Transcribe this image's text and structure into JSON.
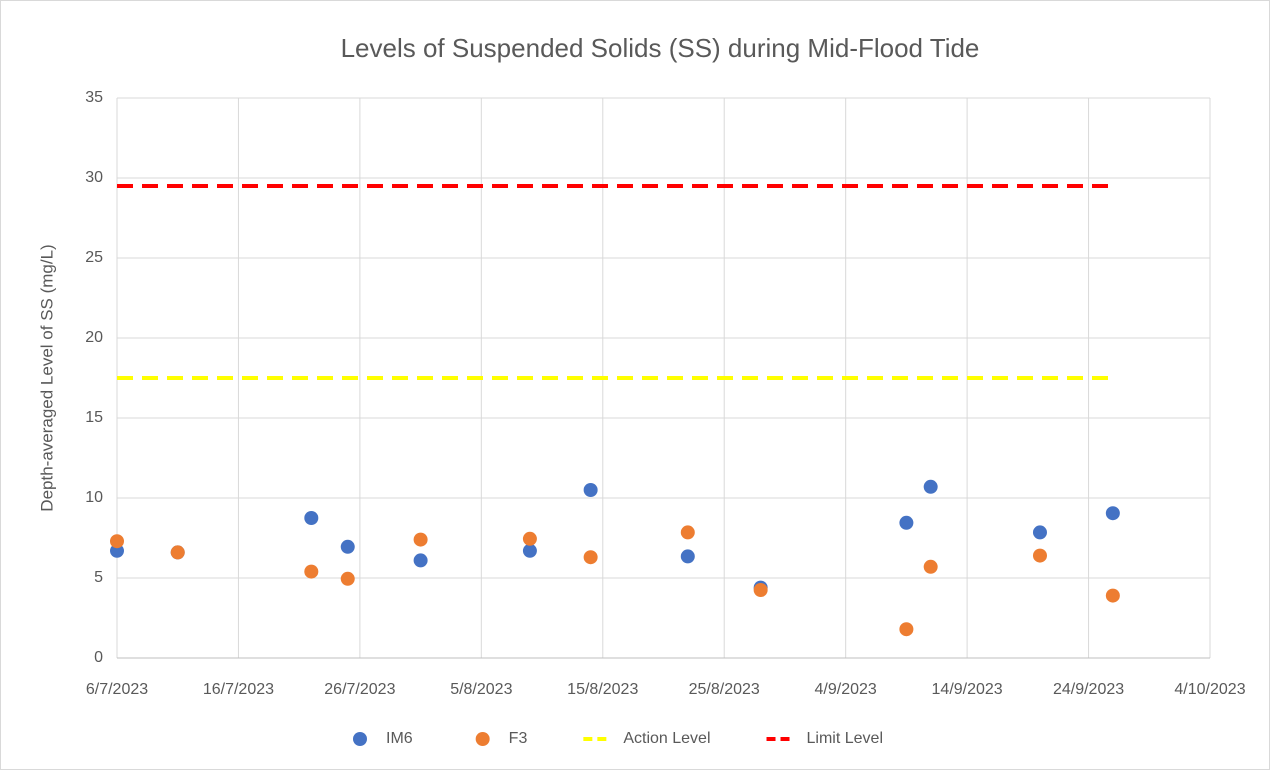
{
  "chart_data": {
    "type": "scatter",
    "title": "Levels of Suspended Solids (SS) during Mid-Flood Tide",
    "y_label": "Depth-averaged Level of  SS (mg/L)",
    "x": [
      "2023-07-06",
      "2023-07-11",
      "2023-07-22",
      "2023-07-25",
      "2023-07-31",
      "2023-08-09",
      "2023-08-14",
      "2023-08-22",
      "2023-08-28",
      "2023-09-09",
      "2023-09-11",
      "2023-09-20",
      "2023-09-26"
    ],
    "series": [
      {
        "name": "IM6",
        "color": "#4472c4",
        "mode": "markers",
        "values": [
          6.7,
          6.6,
          8.75,
          6.95,
          6.1,
          6.7,
          10.5,
          6.35,
          4.4,
          8.45,
          10.7,
          7.85,
          9.05
        ]
      },
      {
        "name": "F3",
        "color": "#ed7d31",
        "mode": "markers",
        "values": [
          7.3,
          6.6,
          5.4,
          4.95,
          7.4,
          7.45,
          6.3,
          7.85,
          4.25,
          1.8,
          5.7,
          6.4,
          3.9
        ]
      },
      {
        "name": "Action Level",
        "color": "#ffff00",
        "mode": "dashed",
        "values": [
          17.5,
          17.5,
          17.5,
          17.5,
          17.5,
          17.5,
          17.5,
          17.5,
          17.5,
          17.5,
          17.5,
          17.5,
          17.5
        ]
      },
      {
        "name": "Limit Level",
        "color": "#ff0000",
        "mode": "dashed",
        "values": [
          29.5,
          29.5,
          29.5,
          29.5,
          29.5,
          29.5,
          29.5,
          29.5,
          29.5,
          29.5,
          29.5,
          29.5,
          29.5
        ]
      }
    ],
    "xlim": [
      "2023-07-06",
      "2023-10-04"
    ],
    "xticks": [
      {
        "value": "2023-07-06",
        "label": "6/7/2023"
      },
      {
        "value": "2023-07-16",
        "label": "16/7/2023"
      },
      {
        "value": "2023-07-26",
        "label": "26/7/2023"
      },
      {
        "value": "2023-08-05",
        "label": "5/8/2023"
      },
      {
        "value": "2023-08-15",
        "label": "15/8/2023"
      },
      {
        "value": "2023-08-25",
        "label": "25/8/2023"
      },
      {
        "value": "2023-09-04",
        "label": "4/9/2023"
      },
      {
        "value": "2023-09-14",
        "label": "14/9/2023"
      },
      {
        "value": "2023-09-24",
        "label": "24/9/2023"
      },
      {
        "value": "2023-10-04",
        "label": "4/10/2023"
      }
    ],
    "ylim": [
      0,
      35
    ],
    "yticks": [
      0,
      5,
      10,
      15,
      20,
      25,
      30,
      35
    ],
    "grid": true,
    "legend": "bottom"
  }
}
